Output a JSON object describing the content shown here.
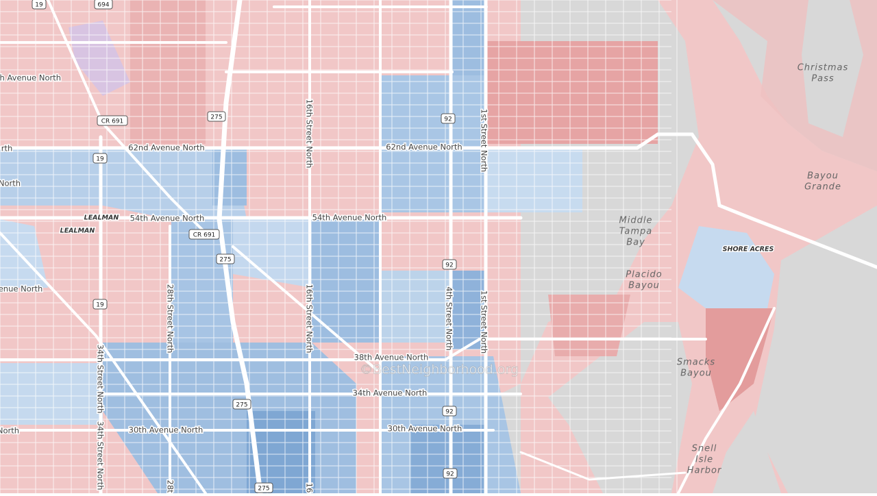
{
  "roads": [
    "62nd Avenue North",
    "62nd Avenue North",
    "54th Avenue North",
    "54th Avenue North",
    "38th Avenue North",
    "34th Avenue North",
    "30th Avenue North",
    "30th Avenue North",
    "th Avenue North",
    "rth",
    "North",
    "enue North",
    "North"
  ],
  "streets": [
    "16th Street North",
    "16th Street North",
    "1st Street North",
    "1st Street North",
    "4th Street North",
    "28th Street North",
    "28t",
    "34th Street North",
    "34th Street North",
    "16"
  ],
  "places": [
    [
      "LEALMAN"
    ],
    [
      "LEALMAN"
    ],
    [
      "Christmas",
      "Pass"
    ],
    [
      "Bayou",
      "Grande"
    ],
    [
      "Middle",
      "Tampa",
      "Bay"
    ],
    [
      "Placido",
      "Bayou"
    ],
    [
      "SHORE ACRES"
    ],
    [
      "Smacks",
      "Bayou"
    ],
    [
      "Snell",
      "Isle",
      "Harbor"
    ]
  ],
  "shields": [
    "19",
    "694",
    "CR 691",
    "275",
    "92",
    "19",
    "CR 691",
    "275",
    "92",
    "19",
    "275",
    "92",
    "275",
    "92"
  ],
  "watermark": "©BestNeighborhood.org"
}
